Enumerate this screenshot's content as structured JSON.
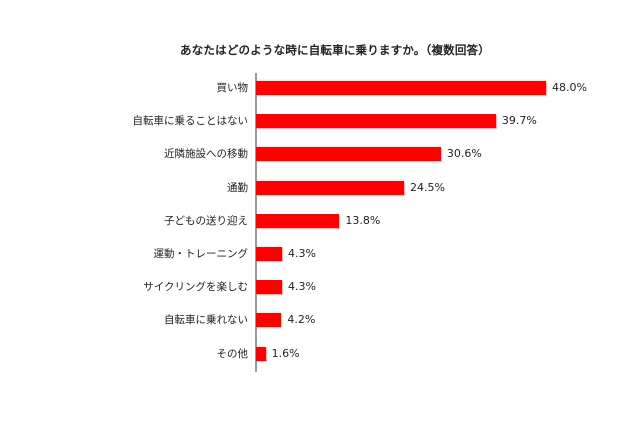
{
  "chart_data": {
    "type": "bar",
    "orientation": "horizontal",
    "title": "あなたはどのような時に自転車に乗りますか。（複数回答）",
    "xlabel": "",
    "ylabel": "",
    "categories": [
      "買い物",
      "自転車に乗ることはない",
      "近隣施設への移動",
      "通勤",
      "子どもの送り迎え",
      "運動・トレーニング",
      "サイクリングを楽しむ",
      "自転車に乗れない",
      "その他"
    ],
    "values": [
      48.0,
      39.7,
      30.6,
      24.5,
      13.8,
      4.3,
      4.3,
      4.2,
      1.6
    ],
    "value_labels": [
      "48.0%",
      "39.7%",
      "30.6%",
      "24.5%",
      "13.8%",
      "4.3%",
      "4.3%",
      "4.2%",
      "1.6%"
    ],
    "unit": "%",
    "xlim": [
      0,
      50
    ],
    "grid": false,
    "legend": "none",
    "bar_color": "#ff0000"
  }
}
